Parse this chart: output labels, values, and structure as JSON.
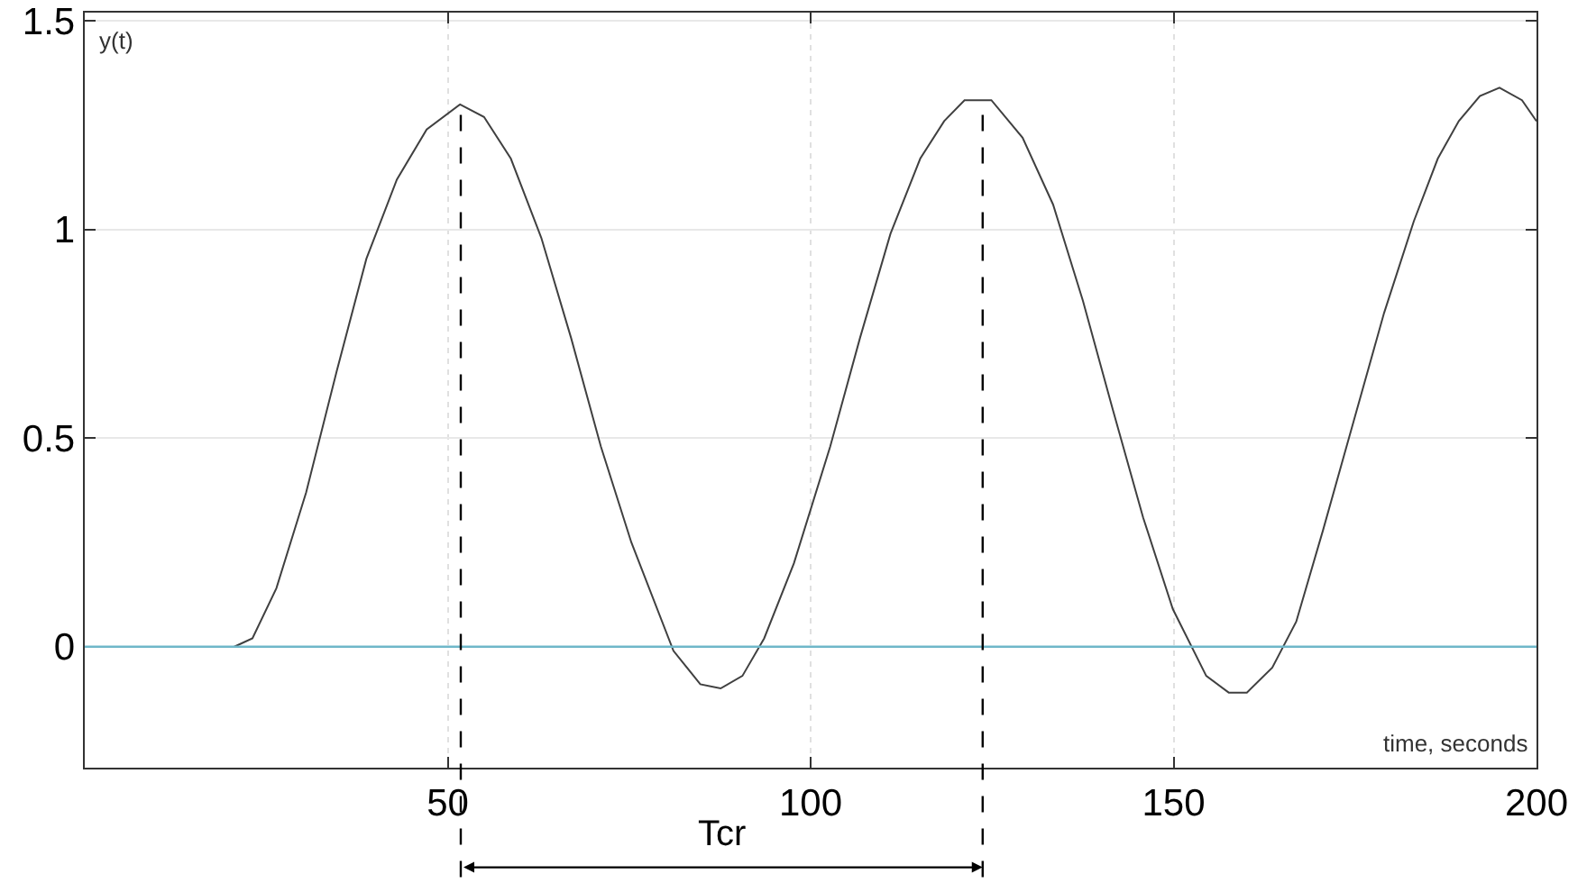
{
  "chart_data": {
    "type": "line",
    "xlabel": "time, seconds",
    "ylabel": "y(t)",
    "x": [
      20.6,
      23.1,
      26.4,
      30.5,
      34.7,
      38.8,
      43.0,
      47.1,
      51.7,
      55.0,
      58.7,
      62.9,
      67.0,
      71.1,
      75.3,
      81.1,
      84.8,
      87.6,
      90.6,
      93.6,
      97.7,
      102.7,
      106.8,
      111.0,
      115.1,
      118.4,
      121.2,
      124.9,
      129.2,
      133.4,
      137.5,
      141.6,
      145.8,
      149.9,
      154.5,
      157.6,
      160.1,
      163.6,
      166.9,
      170.6,
      174.8,
      179.0,
      183.1,
      186.4,
      189.3,
      192.2,
      194.9,
      198.0,
      200
    ],
    "series": [
      {
        "color": "#404040",
        "values": [
          0,
          0.02,
          0.14,
          0.37,
          0.66,
          0.93,
          1.12,
          1.24,
          1.3,
          1.27,
          1.17,
          0.98,
          0.74,
          0.48,
          0.25,
          -0.01,
          -0.09,
          -0.1,
          -0.07,
          0.02,
          0.2,
          0.48,
          0.74,
          0.99,
          1.17,
          1.26,
          1.31,
          1.31,
          1.22,
          1.06,
          0.83,
          0.57,
          0.31,
          0.09,
          -0.07,
          -0.11,
          -0.11,
          -0.05,
          0.06,
          0.28,
          0.54,
          0.8,
          1.02,
          1.17,
          1.26,
          1.32,
          1.34,
          1.31,
          1.26
        ]
      }
    ],
    "xlim": [
      0,
      200
    ],
    "ylim": [
      -0.29,
      1.52
    ],
    "xticks": [
      50,
      100,
      150,
      200
    ],
    "yticks": [
      0,
      0.5,
      1,
      1.5
    ],
    "grid": true,
    "ref_lines": [
      {
        "axis": "y",
        "value": 0,
        "color": "#6fb7c9",
        "line_style": "solid"
      },
      {
        "axis": "x",
        "value": 51.8,
        "color": "#000000",
        "line_style": "dashed"
      },
      {
        "axis": "x",
        "value": 123.7,
        "color": "#000000",
        "line_style": "dashed"
      }
    ],
    "annotations": [
      "Tcr"
    ]
  }
}
